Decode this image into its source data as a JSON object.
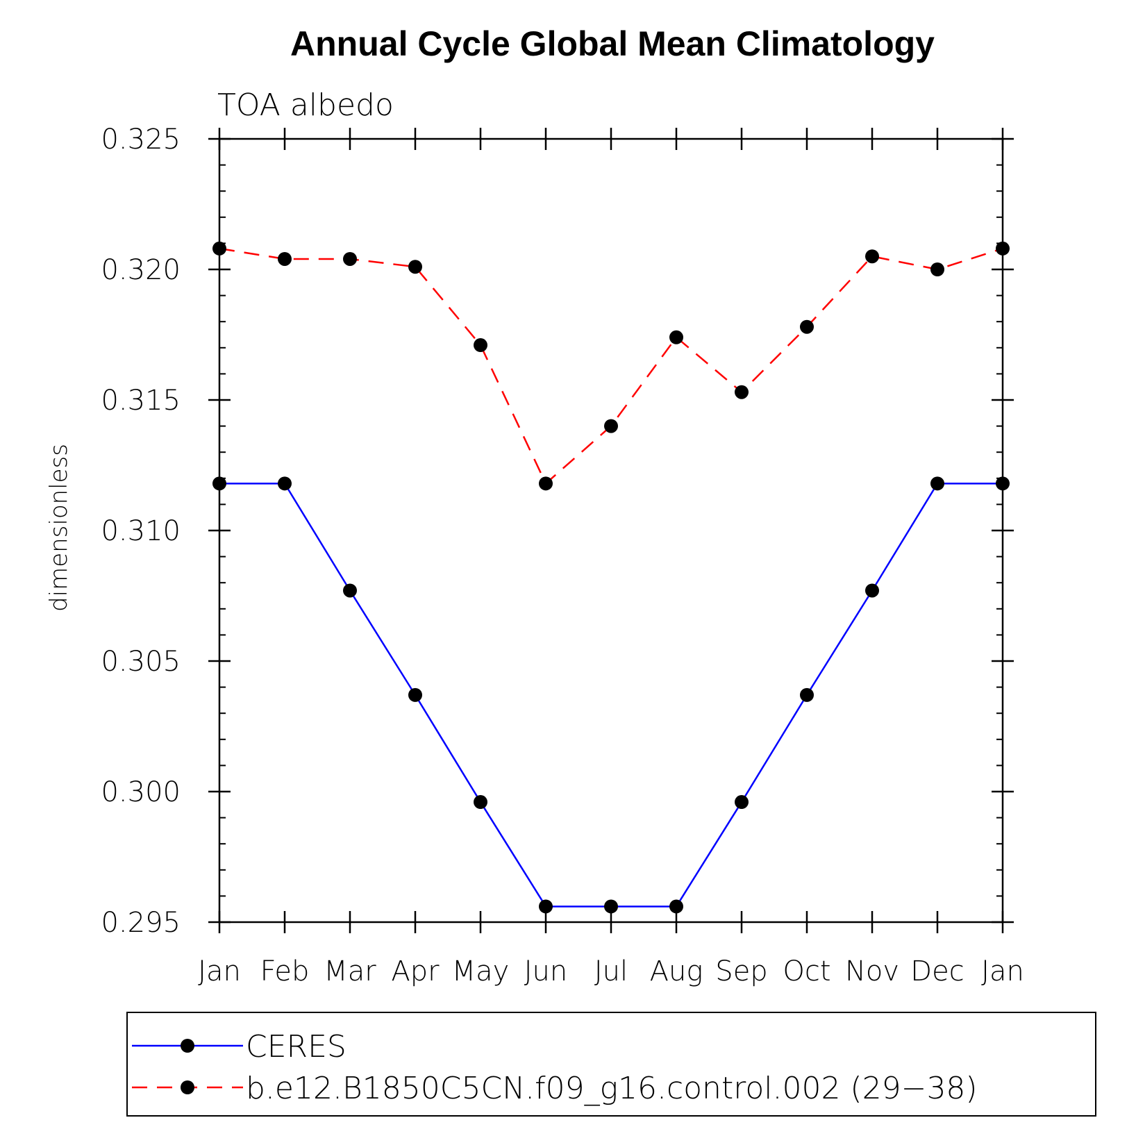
{
  "chart_data": {
    "type": "line",
    "title": "Annual Cycle Global Mean Climatology",
    "subtitle": "TOA albedo",
    "xlabel": "",
    "ylabel": "dimensionless",
    "categories": [
      "Jan",
      "Feb",
      "Mar",
      "Apr",
      "May",
      "Jun",
      "Jul",
      "Aug",
      "Sep",
      "Oct",
      "Nov",
      "Dec",
      "Jan"
    ],
    "ylim": [
      0.295,
      0.325
    ],
    "yticks": [
      "0.295",
      "0.300",
      "0.305",
      "0.310",
      "0.315",
      "0.320",
      "0.325"
    ],
    "grid": false,
    "legend_position": "bottom",
    "series": [
      {
        "name": "CERES",
        "color": "#0000ff",
        "dash": "solid",
        "marker": "filled-circle",
        "values": [
          0.3118,
          0.3118,
          0.3077,
          0.3037,
          0.2996,
          0.2956,
          0.2956,
          0.2956,
          0.2996,
          0.3037,
          0.3077,
          0.3118,
          0.3118
        ]
      },
      {
        "name": "b.e12.B1850C5CN.f09_g16.control.002 (29−38)",
        "color": "#ff0000",
        "dash": "dashed",
        "marker": "filled-circle",
        "values": [
          0.3208,
          0.3204,
          0.3204,
          0.3201,
          0.3171,
          0.3118,
          0.314,
          0.3174,
          0.3153,
          0.3178,
          0.3205,
          0.32,
          0.3208
        ]
      }
    ]
  }
}
